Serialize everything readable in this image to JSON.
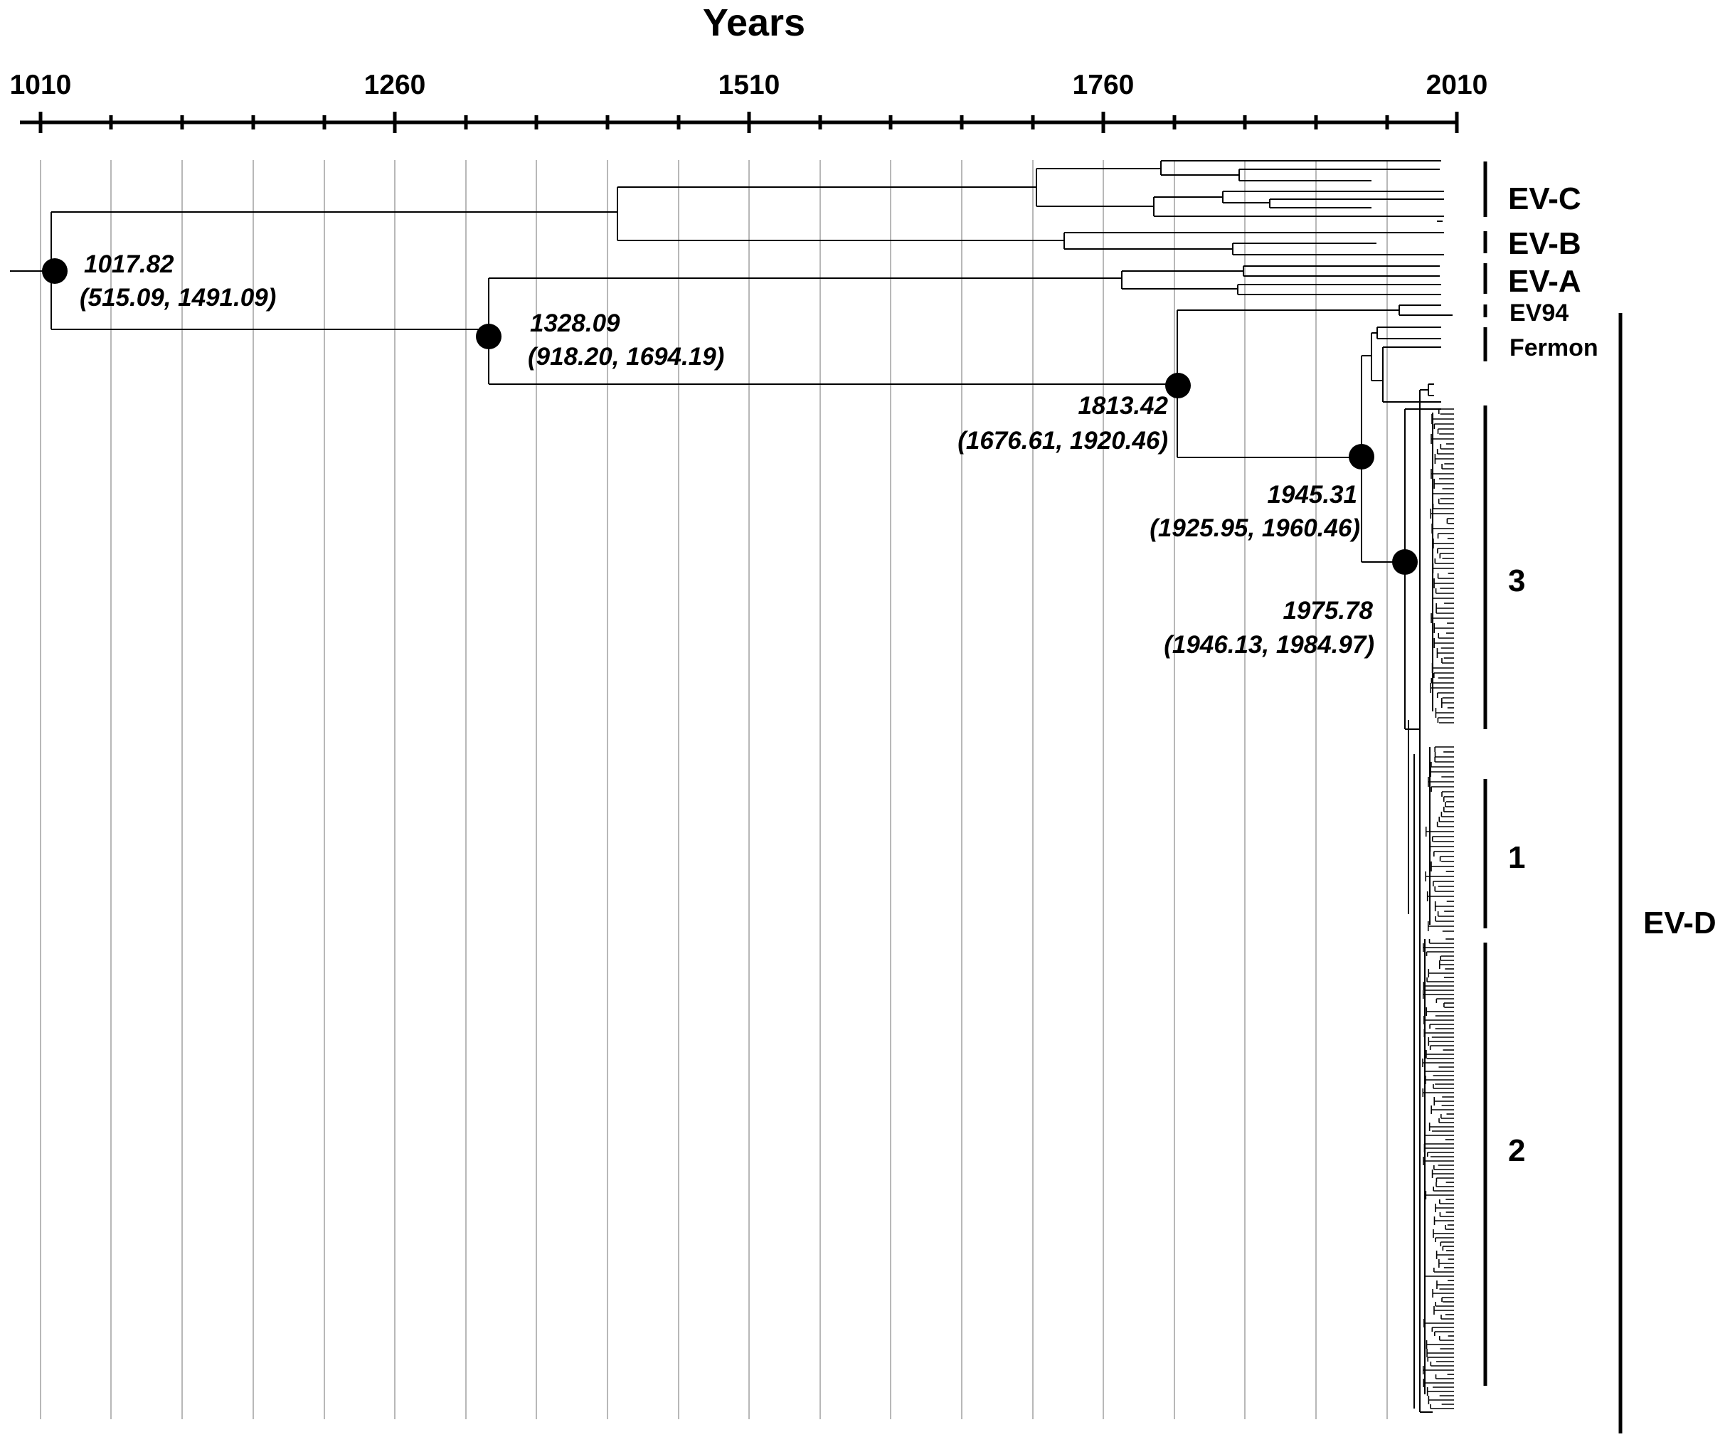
{
  "axis": {
    "title": "Years",
    "ticks": [
      "1010",
      "1260",
      "1510",
      "1760",
      "2010"
    ]
  },
  "nodes": [
    {
      "age": "1017.82",
      "hpd": "(515.09, 1491.09)"
    },
    {
      "age": "1328.09",
      "hpd": "(918.20, 1694.19)"
    },
    {
      "age": "1813.42",
      "hpd": "(1676.61, 1920.46)"
    },
    {
      "age": "1945.31",
      "hpd": "(1925.95, 1960.46)"
    },
    {
      "age": "1975.78",
      "hpd": "(1946.13, 1984.97)"
    }
  ],
  "clades": {
    "ev_c": "EV-C",
    "ev_b": "EV-B",
    "ev_a": "EV-A",
    "ev94": "EV94",
    "fermon": "Fermon",
    "sub3": "3",
    "sub1": "1",
    "sub2": "2",
    "ev_d": "EV-D"
  }
}
